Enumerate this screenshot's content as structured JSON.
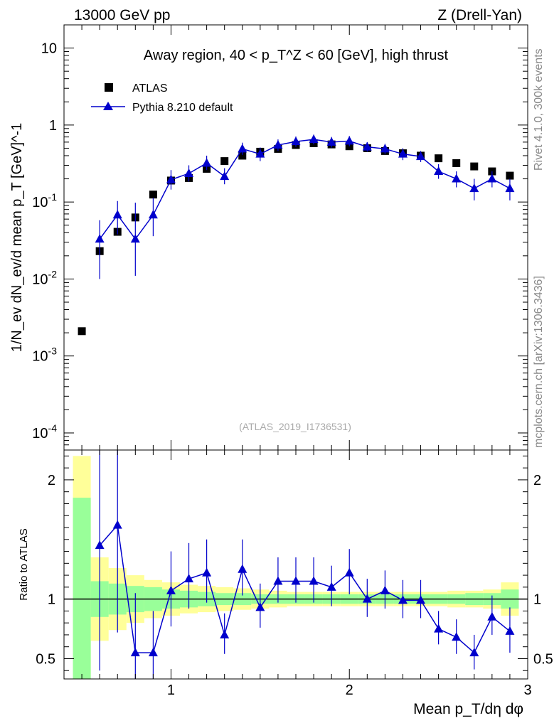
{
  "header": {
    "energy_label": "13000 GeV pp",
    "process_label": "Z (Drell-Yan)"
  },
  "side": {
    "rivet_label": "Rivet 4.1.0,  300k events",
    "source_label": "mcplots.cern.ch [arXiv:1306.3436]"
  },
  "chart_data": [
    {
      "type": "scatter",
      "panel": "main",
      "title": "Away region, 40 < p_T^Z < 60 [GeV], high thrust",
      "ylabel": "1/N_ev dN_ev/d mean p_T [GeV]^-1",
      "xlabel": "",
      "yscale": "log",
      "xlim": [
        0.4,
        3.0
      ],
      "ylim": [
        6e-05,
        20
      ],
      "y_ticks": [
        {
          "value": 0.0001,
          "base": "10",
          "exp": "-4"
        },
        {
          "value": 0.001,
          "base": "10",
          "exp": "-3"
        },
        {
          "value": 0.01,
          "base": "10",
          "exp": "-2"
        },
        {
          "value": 0.1,
          "base": "10",
          "exp": "-1"
        },
        {
          "value": 1,
          "base": "1",
          "exp": ""
        },
        {
          "value": 10,
          "base": "10",
          "exp": ""
        }
      ],
      "watermark": "(ATLAS_2019_I1736531)",
      "series": [
        {
          "name": "ATLAS",
          "color": "#000000",
          "marker": "square",
          "x": [
            0.5,
            0.6,
            0.7,
            0.8,
            0.9,
            1.0,
            1.1,
            1.2,
            1.3,
            1.4,
            1.5,
            1.6,
            1.7,
            1.8,
            1.9,
            2.0,
            2.1,
            2.2,
            2.3,
            2.4,
            2.5,
            2.6,
            2.7,
            2.8,
            2.9
          ],
          "y": [
            0.0021,
            0.023,
            0.041,
            0.063,
            0.125,
            0.19,
            0.205,
            0.27,
            0.34,
            0.4,
            0.45,
            0.49,
            0.55,
            0.58,
            0.56,
            0.53,
            0.5,
            0.46,
            0.43,
            0.4,
            0.37,
            0.32,
            0.29,
            0.25,
            0.22
          ]
        },
        {
          "name": "Pythia 8.210 default",
          "color": "#0000cc",
          "marker": "triangle",
          "x": [
            0.6,
            0.7,
            0.8,
            0.9,
            1.0,
            1.1,
            1.2,
            1.3,
            1.4,
            1.5,
            1.6,
            1.7,
            1.8,
            1.9,
            2.0,
            2.1,
            2.2,
            2.3,
            2.4,
            2.5,
            2.6,
            2.7,
            2.8,
            2.9
          ],
          "y": [
            0.033,
            0.068,
            0.033,
            0.068,
            0.195,
            0.235,
            0.32,
            0.215,
            0.49,
            0.42,
            0.55,
            0.61,
            0.65,
            0.6,
            0.62,
            0.52,
            0.49,
            0.42,
            0.39,
            0.25,
            0.2,
            0.15,
            0.2,
            0.15
          ],
          "err_up": [
            0.025,
            0.035,
            0.065,
            0.045,
            0.065,
            0.065,
            0.08,
            0.06,
            0.1,
            0.09,
            0.1,
            0.1,
            0.1,
            0.1,
            0.1,
            0.08,
            0.08,
            0.08,
            0.07,
            0.06,
            0.05,
            0.05,
            0.05,
            0.05
          ],
          "err_down": [
            0.023,
            0.03,
            0.022,
            0.032,
            0.05,
            0.05,
            0.06,
            0.045,
            0.08,
            0.08,
            0.09,
            0.09,
            0.09,
            0.09,
            0.09,
            0.07,
            0.07,
            0.07,
            0.06,
            0.05,
            0.045,
            0.045,
            0.045,
            0.045
          ]
        }
      ]
    },
    {
      "type": "scatter",
      "panel": "ratio",
      "ylabel": "Ratio to ATLAS",
      "xlabel": "Mean p_T/dη dφ",
      "xlim": [
        0.4,
        3.0
      ],
      "ylim": [
        0.33,
        2.25
      ],
      "x_ticks": [
        "1",
        "2",
        "3"
      ],
      "y_ticks": [
        "0.5",
        "1",
        "2"
      ],
      "x_tick_values": [
        1,
        2,
        3
      ],
      "y_tick_values": [
        0.5,
        1,
        2
      ],
      "bands": {
        "x_edges": [
          0.45,
          0.55,
          0.65,
          0.75,
          0.85,
          0.95,
          1.05,
          1.15,
          1.25,
          1.35,
          1.45,
          1.55,
          1.65,
          1.75,
          1.85,
          1.95,
          2.05,
          2.15,
          2.25,
          2.35,
          2.45,
          2.55,
          2.65,
          2.75,
          2.85,
          2.95
        ],
        "yellow_half": [
          1.2,
          0.35,
          0.26,
          0.2,
          0.16,
          0.14,
          0.12,
          0.11,
          0.1,
          0.09,
          0.08,
          0.07,
          0.06,
          0.06,
          0.06,
          0.06,
          0.06,
          0.06,
          0.06,
          0.06,
          0.06,
          0.07,
          0.07,
          0.08,
          0.14
        ],
        "green_half": [
          0.85,
          0.15,
          0.13,
          0.11,
          0.1,
          0.08,
          0.07,
          0.06,
          0.05,
          0.05,
          0.04,
          0.04,
          0.04,
          0.04,
          0.04,
          0.04,
          0.04,
          0.04,
          0.04,
          0.04,
          0.04,
          0.04,
          0.05,
          0.05,
          0.08
        ]
      },
      "series": [
        {
          "name": "Pythia 8.210 default / ATLAS",
          "color": "#0000cc",
          "marker": "triangle",
          "x": [
            0.6,
            0.7,
            0.8,
            0.9,
            1.0,
            1.1,
            1.2,
            1.3,
            1.4,
            1.5,
            1.6,
            1.7,
            1.8,
            1.9,
            2.0,
            2.1,
            2.2,
            2.3,
            2.4,
            2.5,
            2.6,
            2.7,
            2.8,
            2.9
          ],
          "y": [
            1.45,
            1.62,
            0.55,
            0.55,
            1.07,
            1.17,
            1.22,
            0.7,
            1.25,
            0.93,
            1.15,
            1.15,
            1.15,
            1.1,
            1.22,
            1.0,
            1.07,
            0.99,
            0.99,
            0.75,
            0.68,
            0.55,
            0.85,
            0.73
          ],
          "err_up": [
            1.2,
            0.9,
            0.5,
            0.35,
            0.33,
            0.3,
            0.28,
            0.18,
            0.25,
            0.2,
            0.2,
            0.2,
            0.2,
            0.18,
            0.2,
            0.17,
            0.17,
            0.17,
            0.17,
            0.15,
            0.15,
            0.15,
            0.18,
            0.2
          ],
          "err_down": [
            1.05,
            0.9,
            0.4,
            0.35,
            0.3,
            0.25,
            0.25,
            0.16,
            0.22,
            0.17,
            0.18,
            0.18,
            0.18,
            0.16,
            0.18,
            0.15,
            0.15,
            0.15,
            0.15,
            0.13,
            0.14,
            0.14,
            0.15,
            0.18
          ]
        }
      ]
    }
  ]
}
